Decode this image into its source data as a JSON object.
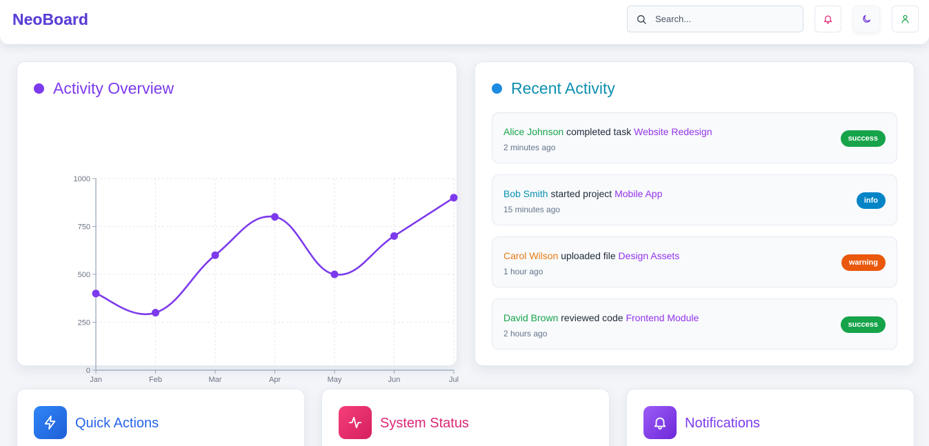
{
  "header": {
    "brand": "NeoBoard",
    "search_placeholder": "Search...",
    "icons": [
      "bell-icon",
      "moon-icon",
      "user-icon"
    ]
  },
  "activity_overview": {
    "title": "Activity Overview",
    "chart_data": {
      "type": "line",
      "x": [
        "Jan",
        "Feb",
        "Mar",
        "Apr",
        "May",
        "Jun",
        "Jul"
      ],
      "series": [
        {
          "values": [
            400,
            300,
            600,
            800,
            500,
            700,
            900
          ]
        }
      ],
      "yticks": [
        "0",
        "250",
        "500",
        "750",
        "1000"
      ],
      "ylim": [
        0,
        1000
      ],
      "grid": true,
      "color": "#7c3aed"
    }
  },
  "recent_activity": {
    "title": "Recent Activity",
    "items": [
      {
        "user": "Alice Johnson",
        "user_color": "#16a34a",
        "action": "completed task",
        "target": "Website Redesign",
        "time": "2 minutes ago",
        "badge": "success",
        "badge_color": "#16a34a"
      },
      {
        "user": "Bob Smith",
        "user_color": "#0891b2",
        "action": "started project",
        "target": "Mobile App",
        "time": "15 minutes ago",
        "badge": "info",
        "badge_color": "#0284c7"
      },
      {
        "user": "Carol Wilson",
        "user_color": "#ea7a12",
        "action": "uploaded file",
        "target": "Design Assets",
        "time": "1 hour ago",
        "badge": "warning",
        "badge_color": "#ea580c"
      },
      {
        "user": "David Brown",
        "user_color": "#16a34a",
        "action": "reviewed code",
        "target": "Frontend Module",
        "time": "2 hours ago",
        "badge": "success",
        "badge_color": "#16a34a"
      }
    ]
  },
  "tiles": [
    {
      "title": "Quick Actions",
      "icon": "lightning-icon",
      "color": "#2563eb"
    },
    {
      "title": "System Status",
      "icon": "pulse-icon",
      "color": "#db2777"
    },
    {
      "title": "Notifications",
      "icon": "bell-icon",
      "color": "#7c3aed"
    }
  ]
}
